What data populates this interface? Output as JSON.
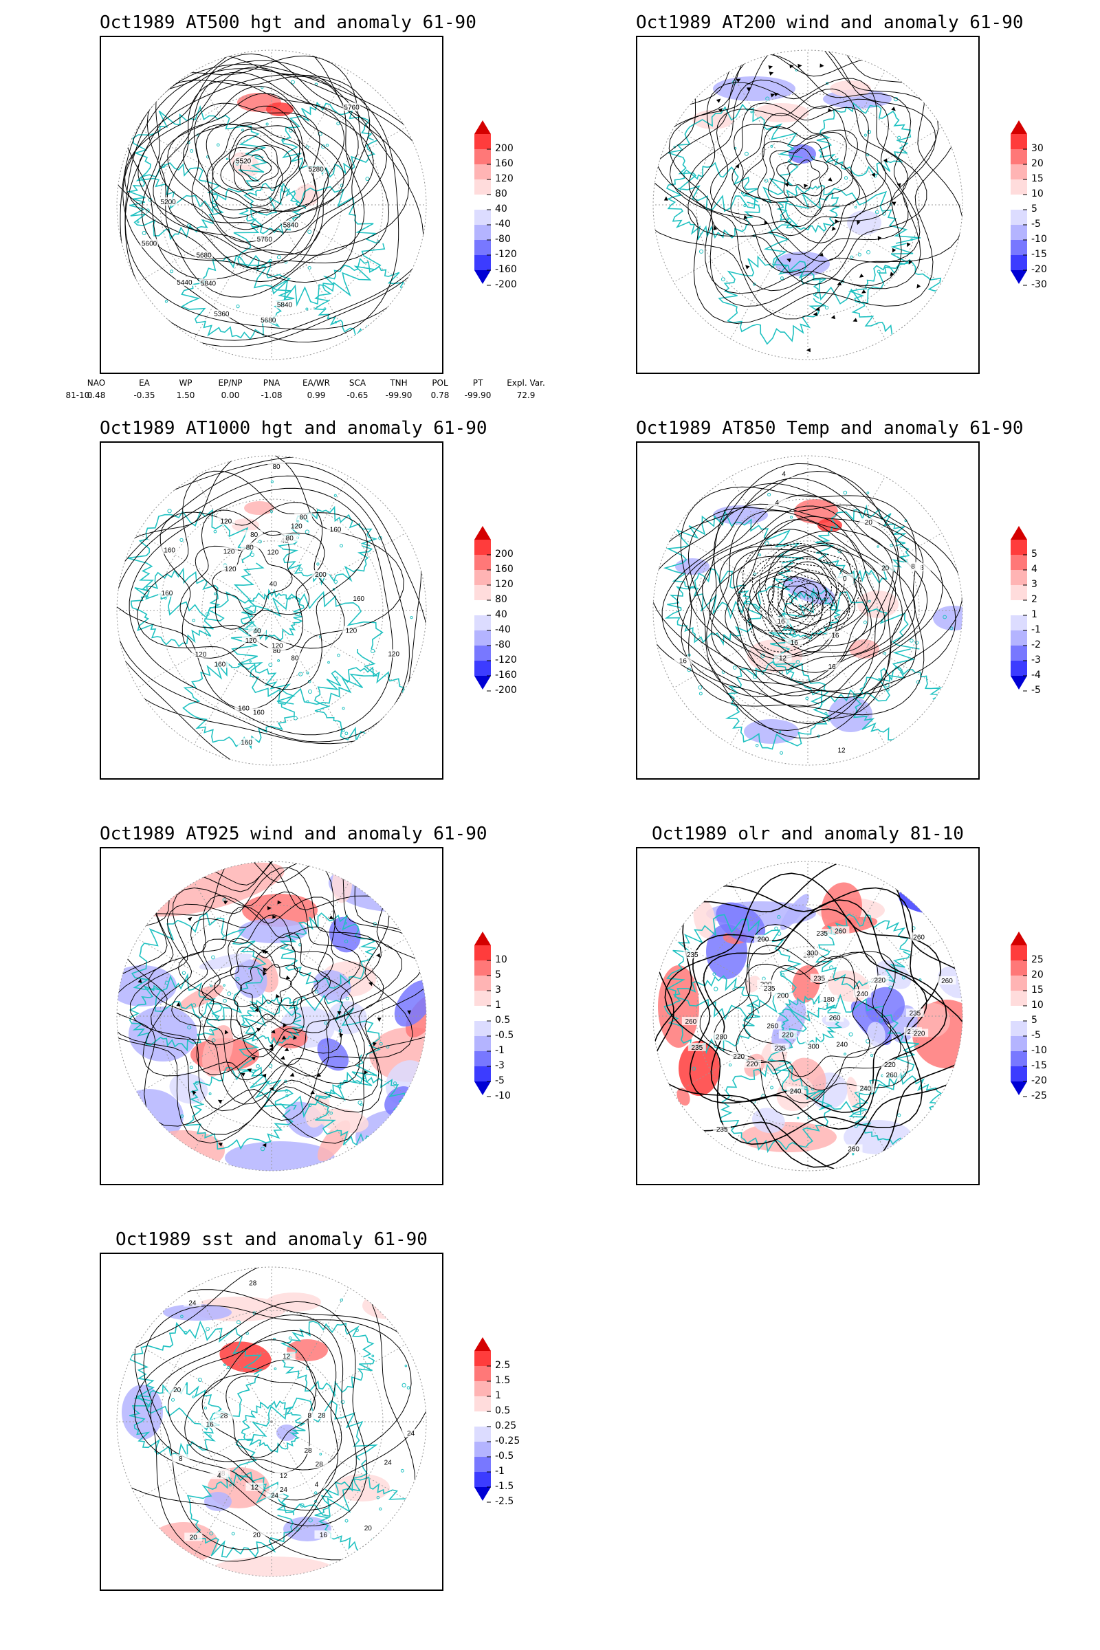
{
  "panels": [
    {
      "id": "p1",
      "title": "Oct1989 AT500 hgt and anomaly 61-90",
      "contour_labels": [
        "5840",
        "5760",
        "5840",
        "5680",
        "5200",
        "5280",
        "5360",
        "5440",
        "5520",
        "5600",
        "5680",
        "5760",
        "5840"
      ],
      "colorbar": [
        "200",
        "160",
        "120",
        "80",
        "40",
        "-40",
        "-80",
        "-120",
        "-160",
        "-200"
      ],
      "colors": [
        "#d40000",
        "#ff3c3c",
        "#ff7878",
        "#ffb4b4",
        "#ffdcdc",
        "#ffffff",
        "#dcdcff",
        "#b4b4ff",
        "#7878ff",
        "#3c3cff",
        "#0000d4"
      ]
    },
    {
      "id": "p2",
      "title": "Oct1989 AT200 wind and anomaly 61-90",
      "contour_labels": [],
      "colorbar": [
        "30",
        "20",
        "15",
        "10",
        "5",
        "-5",
        "-10",
        "-15",
        "-20",
        "-30"
      ],
      "colors": [
        "#d40000",
        "#ff3c3c",
        "#ff7878",
        "#ffb4b4",
        "#ffdcdc",
        "#ffffff",
        "#dcdcff",
        "#b4b4ff",
        "#7878ff",
        "#3c3cff",
        "#0000d4"
      ]
    },
    {
      "id": "p3",
      "title": "Oct1989 AT1000 hgt and anomaly 61-90",
      "contour_labels": [
        "120",
        "160",
        "160",
        "160",
        "40",
        "40",
        "80",
        "120",
        "80",
        "120",
        "160",
        "200",
        "80",
        "80",
        "160",
        "120",
        "40",
        "120",
        "80",
        "160",
        "120",
        "120",
        "160",
        "80",
        "120",
        "160",
        "120",
        "80",
        "120"
      ],
      "colorbar": [
        "200",
        "160",
        "120",
        "80",
        "40",
        "-40",
        "-80",
        "-120",
        "-160",
        "-200"
      ],
      "colors": [
        "#d40000",
        "#ff3c3c",
        "#ff7878",
        "#ffb4b4",
        "#ffdcdc",
        "#ffffff",
        "#dcdcff",
        "#b4b4ff",
        "#7878ff",
        "#3c3cff",
        "#0000d4"
      ]
    },
    {
      "id": "p4",
      "title": "Oct1989 AT850 Temp and anomaly 61-90",
      "contour_labels": [
        "16",
        "12",
        "8",
        "4",
        "0",
        "4",
        "16",
        "16",
        "8",
        "12",
        "16",
        "20",
        "16",
        "20"
      ],
      "colorbar": [
        "5",
        "4",
        "3",
        "2",
        "1",
        "-1",
        "-2",
        "-3",
        "-4",
        "-5"
      ],
      "colors": [
        "#d40000",
        "#ff3c3c",
        "#ff7878",
        "#ffb4b4",
        "#ffdcdc",
        "#ffffff",
        "#dcdcff",
        "#b4b4ff",
        "#7878ff",
        "#3c3cff",
        "#0000d4"
      ]
    },
    {
      "id": "p5",
      "title": "Oct1989 AT925 wind and anomaly 61-90",
      "contour_labels": [],
      "colorbar": [
        "10",
        "5",
        "3",
        "1",
        "0.5",
        "-0.5",
        "-1",
        "-3",
        "-5",
        "-10"
      ],
      "colors": [
        "#d40000",
        "#ff3c3c",
        "#ff7878",
        "#ffb4b4",
        "#ffdcdc",
        "#ffffff",
        "#dcdcff",
        "#b4b4ff",
        "#7878ff",
        "#3c3cff",
        "#0000d4"
      ]
    },
    {
      "id": "p6",
      "title": "Oct1989 olr and anomaly 81-10",
      "contour_labels": [
        "260",
        "235",
        "220",
        "235",
        "240",
        "200",
        "260",
        "260",
        "235",
        "220",
        "235",
        "260",
        "235",
        "240",
        "260",
        "200",
        "220",
        "240",
        "260",
        "235",
        "280",
        "180",
        "235",
        "300",
        "220",
        "240",
        "260",
        "235",
        "300",
        "280",
        "220",
        "235",
        "260",
        "235",
        "220",
        "200"
      ],
      "colorbar": [
        "25",
        "20",
        "15",
        "10",
        "5",
        "-5",
        "-10",
        "-15",
        "-20",
        "-25"
      ],
      "colors": [
        "#d40000",
        "#ff3c3c",
        "#ff7878",
        "#ffb4b4",
        "#ffdcdc",
        "#ffffff",
        "#dcdcff",
        "#b4b4ff",
        "#7878ff",
        "#3c3cff",
        "#0000d4"
      ]
    },
    {
      "id": "p7",
      "title": "Oct1989 sst and anomaly 61-90",
      "contour_labels": [
        "28",
        "28",
        "24",
        "24",
        "20",
        "20",
        "24",
        "16",
        "12",
        "8",
        "4",
        "28",
        "28",
        "24",
        "16",
        "12",
        "8",
        "4",
        "20",
        "12",
        "24",
        "28",
        "20",
        "28"
      ],
      "colorbar": [
        "2.5",
        "1.5",
        "1",
        "0.5",
        "0.25",
        "-0.25",
        "-0.5",
        "-1",
        "-1.5",
        "-2.5"
      ],
      "colors": [
        "#d40000",
        "#ff3c3c",
        "#ff7878",
        "#ffb4b4",
        "#ffdcdc",
        "#ffffff",
        "#dcdcff",
        "#b4b4ff",
        "#7878ff",
        "#3c3cff",
        "#0000d4"
      ]
    }
  ],
  "index_table": {
    "headers": [
      "NAO",
      "EA",
      "WP",
      "EP/NP",
      "PNA",
      "EA/WR",
      "SCA",
      "TNH",
      "POL",
      "PT",
      "Expl. Var."
    ],
    "row_label": "81-10:",
    "values": [
      "0.48",
      "-0.35",
      "1.50",
      "0.00",
      "-1.08",
      "0.99",
      "-0.65",
      "-99.90",
      "0.78",
      "-99.90",
      "72.9"
    ]
  },
  "style": {
    "coast_color": "#1fc1c1",
    "contour_color": "#000000",
    "grid_color": "#9a9a9a"
  }
}
